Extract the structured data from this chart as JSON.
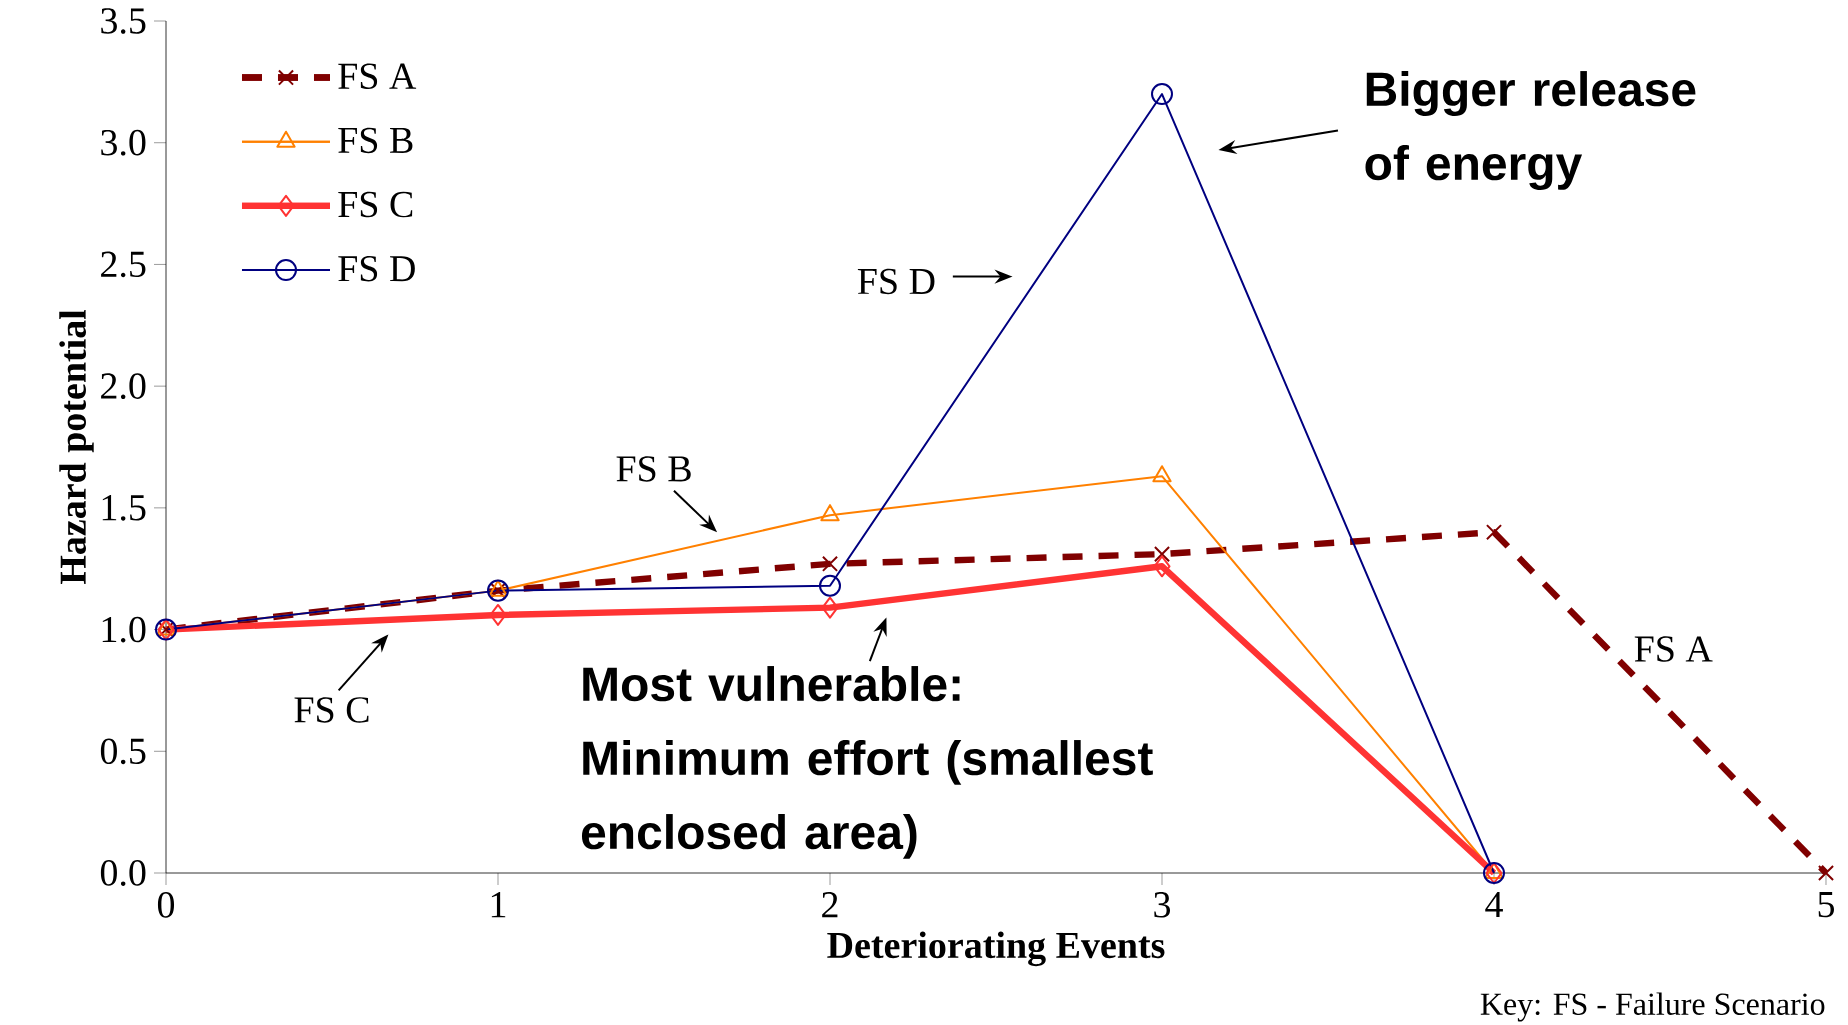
{
  "chart_data": {
    "type": "line",
    "xlabel": "Deteriorating Events",
    "ylabel": "Hazard potential",
    "x": [
      0,
      1,
      2,
      3,
      4,
      5
    ],
    "xlim": [
      0,
      5
    ],
    "ylim": [
      0,
      3.5
    ],
    "xticks": [
      0,
      1,
      2,
      3,
      4,
      5
    ],
    "yticks": [
      {
        "value": 0,
        "label": "0.0"
      },
      {
        "value": 0.5,
        "label": "0.5"
      },
      {
        "value": 1,
        "label": "1.0"
      },
      {
        "value": 1.5,
        "label": "1.5"
      },
      {
        "value": 2,
        "label": "2.0"
      },
      {
        "value": 2.5,
        "label": "2.5"
      },
      {
        "value": 3,
        "label": "3.0"
      },
      {
        "value": 3.5,
        "label": "3.5"
      }
    ],
    "legend": "top left",
    "series": [
      {
        "name": "FS A",
        "color": "#800000",
        "marker": "cross",
        "line_style": "dashed",
        "values": [
          1.0,
          1.16,
          1.27,
          1.31,
          1.4,
          0.0
        ]
      },
      {
        "name": "FS B",
        "color": "#ff8000",
        "marker": "triangle",
        "line_style": "solid",
        "values": [
          1.0,
          1.16,
          1.47,
          1.63,
          0.0,
          null
        ]
      },
      {
        "name": "FS C",
        "color": "#ff3333",
        "marker": "diamond",
        "line_style": "solid",
        "values": [
          1.0,
          1.06,
          1.09,
          1.26,
          0.0,
          null
        ]
      },
      {
        "name": "FS D",
        "color": "#000080",
        "marker": "circle",
        "line_style": "solid",
        "values": [
          1.0,
          1.16,
          1.18,
          3.2,
          0.0,
          null
        ]
      }
    ],
    "annotations": [
      "Bigger release of energy",
      "FS D",
      "FS B",
      "FS C",
      "FS A",
      "Most vulnerable: Minimum effort (smallest enclosed area)",
      "Key: FS - Failure Scenario"
    ]
  }
}
